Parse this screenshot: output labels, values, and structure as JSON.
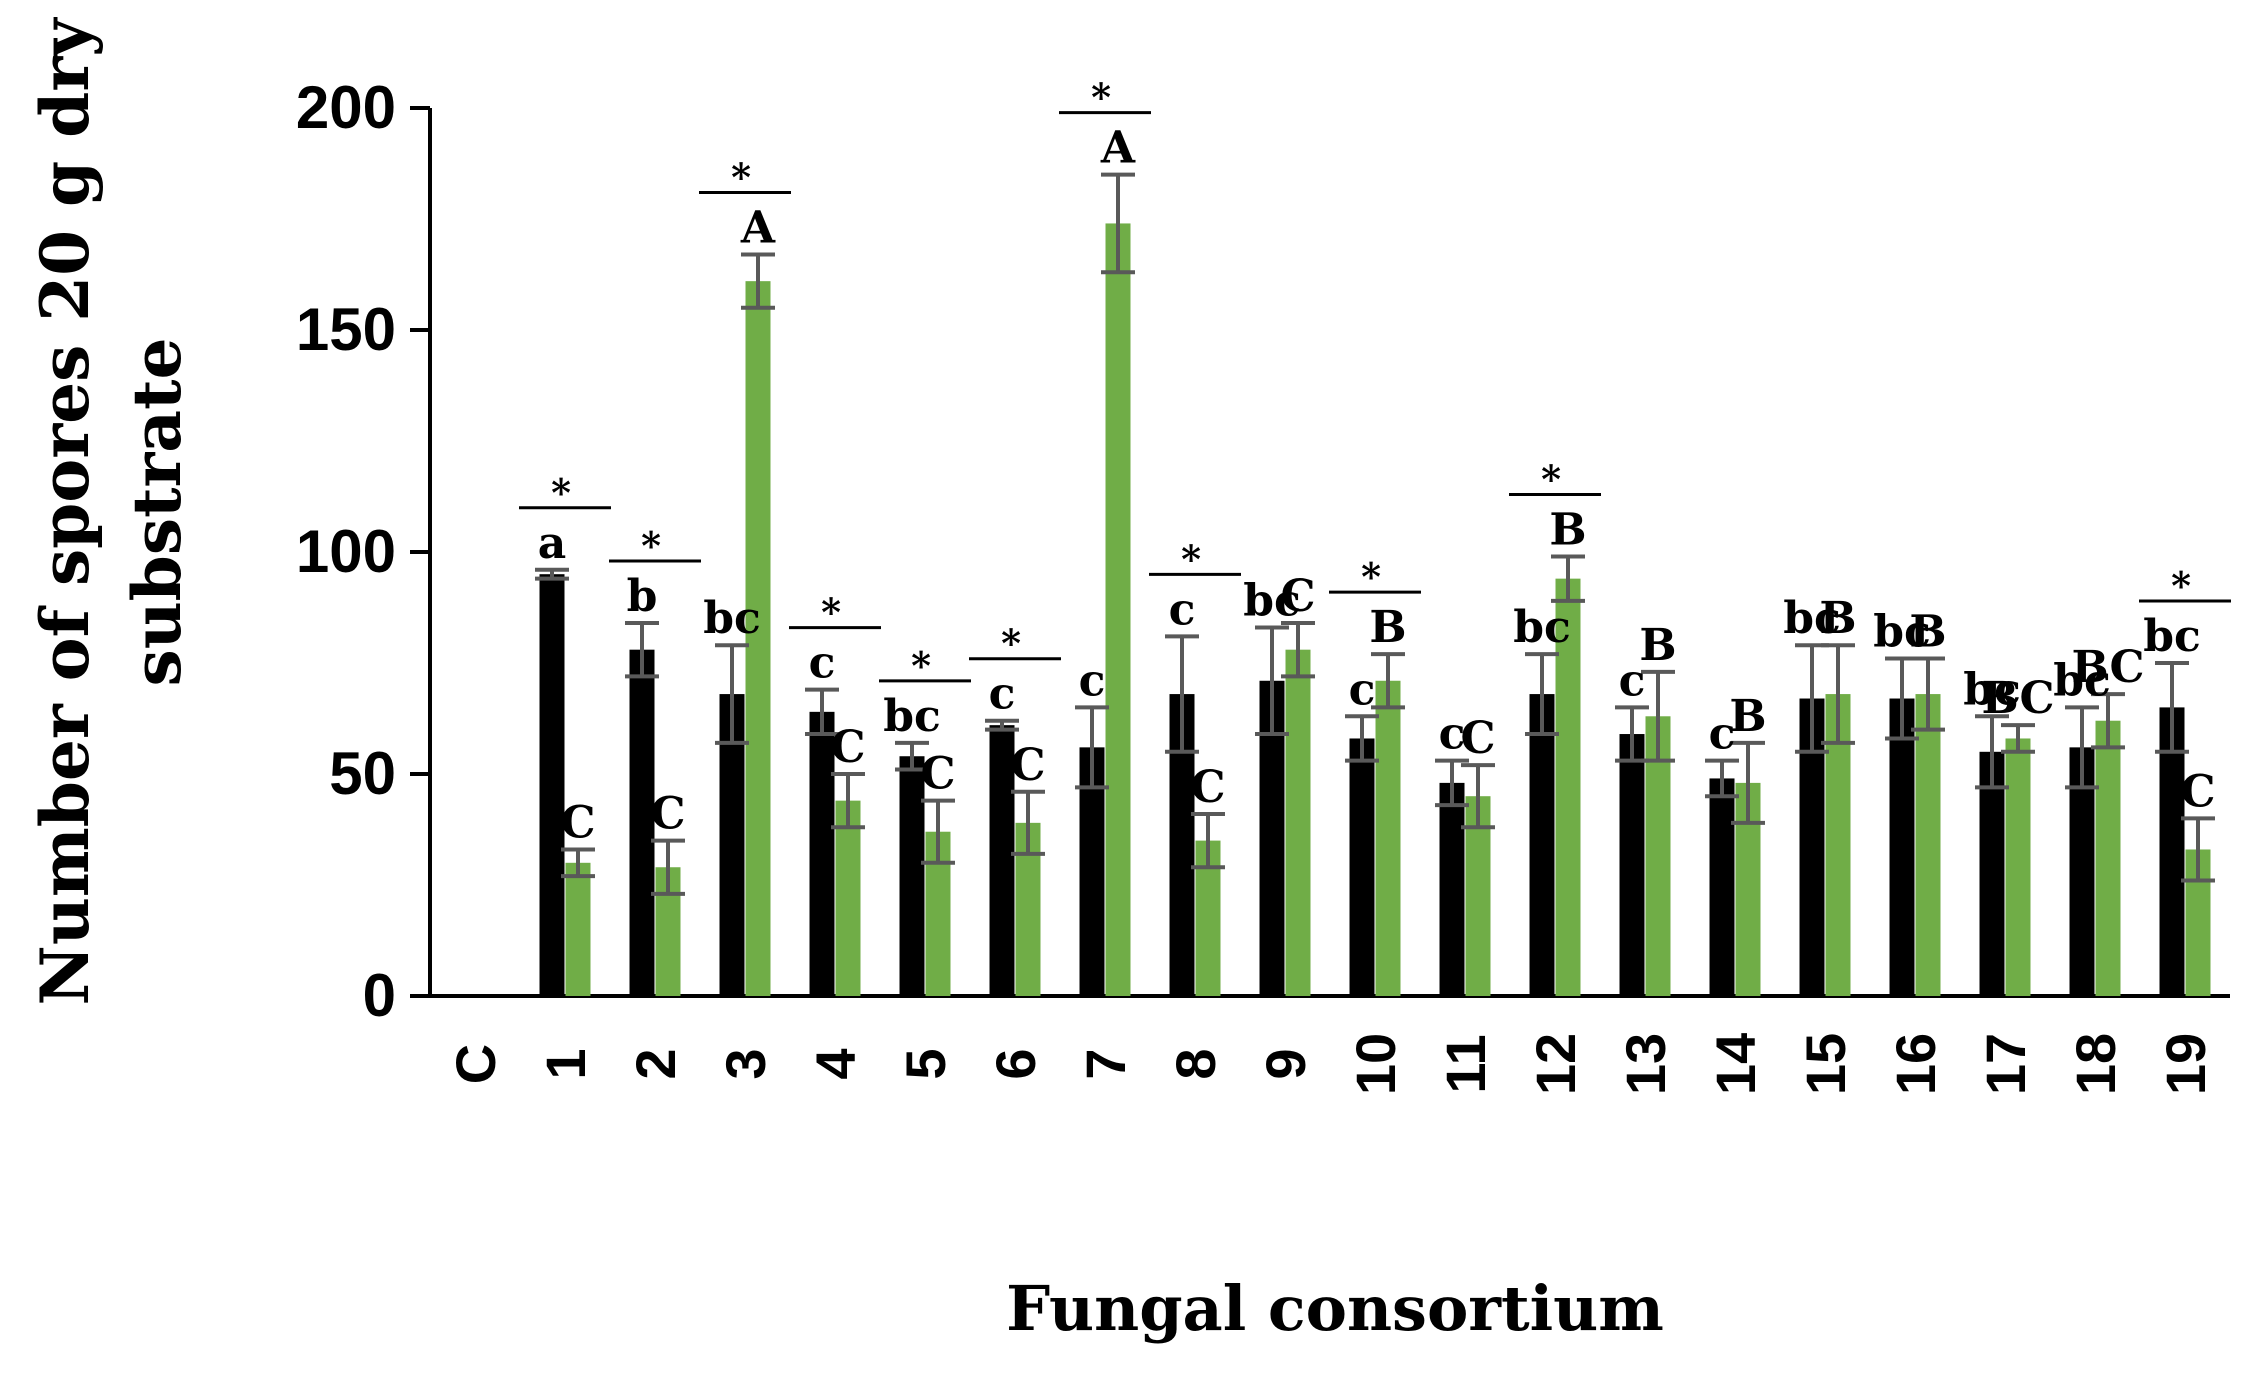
{
  "chart_data": {
    "type": "bar",
    "title": "",
    "xlabel": "Fungal consortium",
    "ylabel": [
      "Number of spores  20 g dry",
      "substrate"
    ],
    "ylim": [
      0,
      200
    ],
    "yticks": [
      0,
      50,
      100,
      150,
      200
    ],
    "categories": [
      "C",
      "1",
      "2",
      "3",
      "4",
      "5",
      "6",
      "7",
      "8",
      "9",
      "10",
      "11",
      "12",
      "13",
      "14",
      "15",
      "16",
      "17",
      "18",
      "19"
    ],
    "grid": false,
    "legend": "none",
    "colors": {
      "series1": "#000000",
      "series2": "#70ad47",
      "error": "#595959"
    },
    "series": [
      {
        "values": [
          0,
          95,
          78,
          68,
          64,
          54,
          61,
          56,
          68,
          71,
          58,
          48,
          68,
          59,
          49,
          67,
          67,
          55,
          56,
          65
        ],
        "errors": [
          0,
          1,
          6,
          11,
          5,
          3,
          1,
          9,
          13,
          12,
          5,
          5,
          9,
          6,
          4,
          12,
          9,
          8,
          9,
          10
        ],
        "letters": [
          "",
          "a",
          "b",
          "bc",
          "c",
          "bc",
          "c",
          "c",
          "c",
          "bc",
          "c",
          "c",
          "bc",
          "c",
          "c",
          "bc",
          "bc",
          "bc",
          "bc",
          "bc"
        ]
      },
      {
        "values": [
          0,
          30,
          29,
          161,
          44,
          37,
          39,
          174,
          35,
          78,
          71,
          45,
          94,
          63,
          48,
          68,
          68,
          58,
          62,
          33
        ],
        "errors": [
          0,
          3,
          6,
          6,
          6,
          7,
          7,
          11,
          6,
          6,
          6,
          7,
          5,
          10,
          9,
          11,
          8,
          3,
          6,
          7
        ],
        "letters": [
          "",
          "C",
          "C",
          "A",
          "C",
          "C",
          "C",
          "A",
          "C",
          "C",
          "B",
          "C",
          "B",
          "B",
          "B",
          "B",
          "B",
          "BC",
          "BC",
          "C"
        ]
      }
    ],
    "significance": [
      "",
      "*",
      "*",
      "*",
      "*",
      "*",
      "*",
      "*",
      "*",
      "",
      "*",
      "",
      "*",
      "",
      "",
      "",
      "",
      "",
      "",
      "*"
    ]
  }
}
